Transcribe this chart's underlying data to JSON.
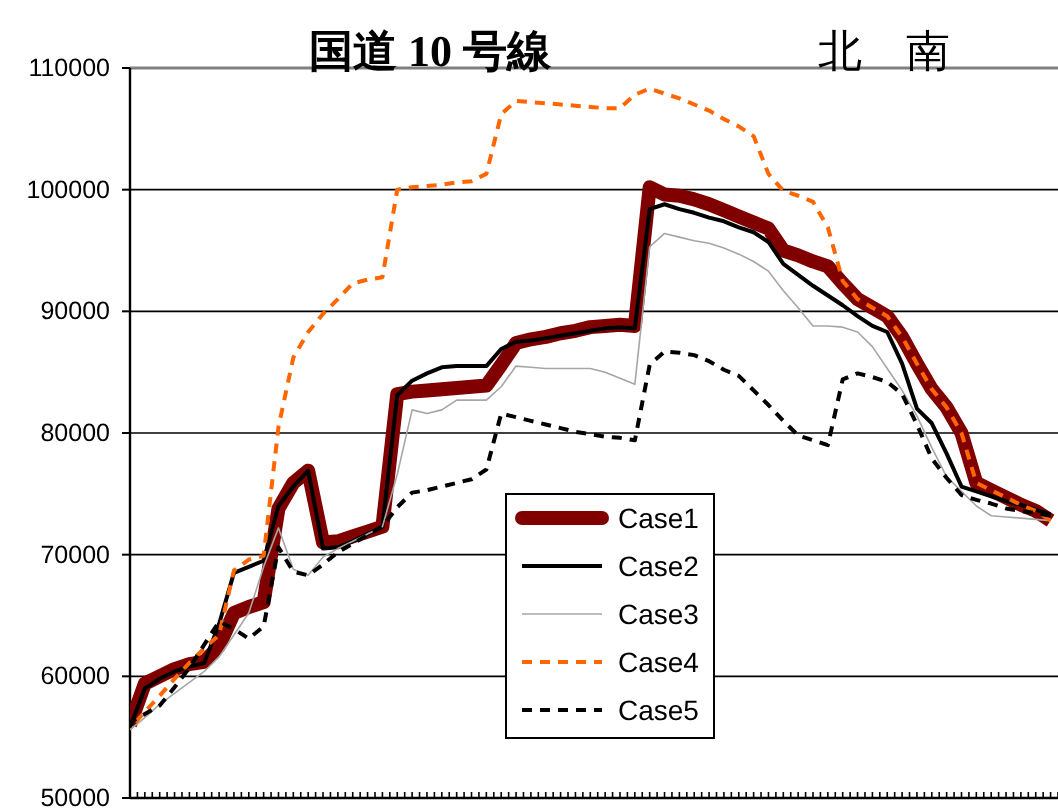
{
  "chart_data": {
    "type": "line",
    "title": "国道 10 号線",
    "annotations": [
      "北　南"
    ],
    "categories": [
      null,
      null,
      null,
      null,
      null,
      null,
      null,
      null,
      null,
      null,
      null,
      null,
      null,
      null,
      null,
      null,
      null,
      null,
      null,
      null,
      null,
      null,
      null,
      null,
      null,
      null,
      null,
      null,
      null,
      null,
      null,
      null,
      null,
      null,
      null,
      null,
      null,
      null,
      null,
      null,
      null,
      null,
      null,
      null,
      null,
      null,
      null,
      null,
      null,
      null,
      null,
      null,
      null,
      null,
      null,
      null,
      null,
      null,
      null,
      null,
      null,
      null,
      null
    ],
    "ylim": [
      50000,
      110000
    ],
    "yticks": [
      50000,
      60000,
      70000,
      80000,
      90000,
      100000,
      110000
    ],
    "grid": "y",
    "legend": "bottom",
    "marker": "none",
    "series": [
      {
        "name": "Case1",
        "color": "#800000",
        "line_style": "solid",
        "values": [
          56000,
          59400,
          60000,
          60600,
          61000,
          61200,
          62500,
          65200,
          65700,
          66100,
          73800,
          75900,
          76900,
          71000,
          71100,
          71500,
          71900,
          72300,
          83200,
          83400,
          83500,
          83600,
          83700,
          83800,
          83900,
          85600,
          87400,
          87700,
          87900,
          88200,
          88400,
          88700,
          88800,
          88900,
          88800,
          100200,
          99600,
          99500,
          99200,
          98800,
          98300,
          97800,
          97300,
          96800,
          95000,
          94600,
          94100,
          93700,
          92300,
          91000,
          90300,
          89600,
          87900,
          85700,
          83600,
          82100,
          80000,
          75900,
          75300,
          74700,
          74100,
          73600,
          72800
        ]
      },
      {
        "name": "Case2",
        "color": "#000000",
        "line_style": "solid",
        "values": [
          55800,
          59000,
          59800,
          60400,
          60800,
          61100,
          64300,
          68500,
          69000,
          69500,
          74000,
          75600,
          76900,
          70500,
          70600,
          71100,
          71700,
          72300,
          83100,
          84300,
          84900,
          85400,
          85500,
          85500,
          85500,
          86900,
          87500,
          87600,
          87800,
          88000,
          88200,
          88400,
          88600,
          88700,
          88600,
          98400,
          98800,
          98400,
          98100,
          97700,
          97400,
          96900,
          96500,
          95700,
          93900,
          93000,
          92100,
          91300,
          90500,
          89600,
          88800,
          88300,
          85700,
          82000,
          80800,
          78300,
          75600,
          75200,
          74800,
          74400,
          74100,
          73700,
          73300
        ]
      },
      {
        "name": "Case3",
        "color": "#a6a6a6",
        "line_style": "solid",
        "values": [
          55600,
          56600,
          57700,
          58600,
          59500,
          60400,
          61600,
          63400,
          65200,
          69000,
          72200,
          68800,
          68300,
          69800,
          70500,
          71100,
          71700,
          72300,
          76600,
          81900,
          81600,
          81900,
          82700,
          82700,
          82700,
          83800,
          85500,
          85400,
          85300,
          85300,
          85300,
          85300,
          85000,
          84500,
          84000,
          95300,
          96400,
          96100,
          95800,
          95600,
          95200,
          94700,
          94100,
          93300,
          91700,
          90300,
          88800,
          88800,
          88700,
          88300,
          87100,
          85300,
          83500,
          81400,
          78800,
          76400,
          75200,
          74000,
          73200,
          73100,
          73000,
          72900,
          72800
        ]
      },
      {
        "name": "Case4",
        "color": "#ff6600",
        "line_style": "dashed",
        "values": [
          55700,
          57100,
          58400,
          59800,
          61100,
          62300,
          63400,
          68700,
          69600,
          69900,
          80500,
          86200,
          88300,
          89800,
          91000,
          92300,
          92600,
          92800,
          100000,
          100200,
          100300,
          100400,
          100600,
          100700,
          101300,
          106200,
          107300,
          107200,
          107100,
          107000,
          106900,
          106800,
          106700,
          106700,
          107800,
          108300,
          107900,
          107500,
          107000,
          106500,
          105800,
          105200,
          104400,
          101300,
          99900,
          99500,
          99000,
          96900,
          92500,
          91000,
          90300,
          89600,
          87900,
          85700,
          83600,
          82100,
          80000,
          75900,
          75300,
          74700,
          74100,
          73600,
          72800
        ]
      },
      {
        "name": "Case5",
        "color": "#000000",
        "line_style": "dashed",
        "values": [
          56200,
          56900,
          57600,
          59100,
          60700,
          62600,
          64500,
          63900,
          63100,
          64100,
          70600,
          68600,
          68300,
          69200,
          70200,
          70900,
          71600,
          72300,
          73900,
          75100,
          75300,
          75600,
          75900,
          76200,
          77000,
          81600,
          81300,
          81000,
          80700,
          80400,
          80100,
          79900,
          79700,
          79600,
          79400,
          85600,
          86700,
          86600,
          86400,
          85900,
          85200,
          84700,
          83500,
          82300,
          81000,
          79800,
          79400,
          79000,
          84400,
          84900,
          84600,
          84200,
          83200,
          80700,
          77900,
          76300,
          74900,
          74500,
          74200,
          73800,
          73600,
          73400,
          73200
        ]
      }
    ]
  }
}
